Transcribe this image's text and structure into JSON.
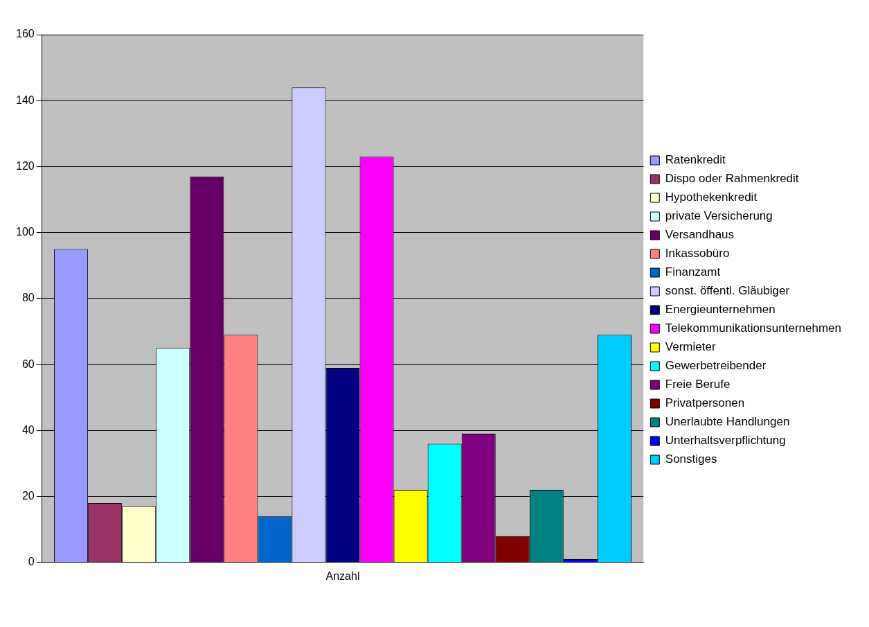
{
  "chart_data": {
    "type": "bar",
    "categories": [
      "Anzahl"
    ],
    "series": [
      {
        "name": "Ratenkredit",
        "color": "#9999ff",
        "values": [
          95
        ]
      },
      {
        "name": "Dispo oder Rahmenkredit",
        "color": "#993366",
        "values": [
          18
        ]
      },
      {
        "name": "Hypothekenkredit",
        "color": "#ffffcc",
        "values": [
          17
        ]
      },
      {
        "name": "private Versicherung",
        "color": "#ccffff",
        "values": [
          65
        ]
      },
      {
        "name": "Versandhaus",
        "color": "#660066",
        "values": [
          117
        ]
      },
      {
        "name": "Inkassobüro",
        "color": "#ff8080",
        "values": [
          69
        ]
      },
      {
        "name": "Finanzamt",
        "color": "#0066cc",
        "values": [
          14
        ]
      },
      {
        "name": "sonst. öffentl. Gläubiger",
        "color": "#ccccff",
        "values": [
          144
        ]
      },
      {
        "name": "Energieunternehmen",
        "color": "#000080",
        "values": [
          59
        ]
      },
      {
        "name": "Telekommunikationsunternehmen",
        "color": "#ff00ff",
        "values": [
          123
        ]
      },
      {
        "name": "Vermieter",
        "color": "#ffff00",
        "values": [
          22
        ]
      },
      {
        "name": "Gewerbetreibender",
        "color": "#00ffff",
        "values": [
          36
        ]
      },
      {
        "name": "Freie Berufe",
        "color": "#800080",
        "values": [
          39
        ]
      },
      {
        "name": "Privatpersonen",
        "color": "#800000",
        "values": [
          8
        ]
      },
      {
        "name": "Unerlaubte Handlungen",
        "color": "#008080",
        "values": [
          22
        ]
      },
      {
        "name": "Unterhaltsverpflichtung",
        "color": "#0000ff",
        "values": [
          1
        ]
      },
      {
        "name": "Sonstiges",
        "color": "#00ccff",
        "values": [
          69
        ]
      }
    ],
    "ylim": [
      0,
      160
    ],
    "yticks": [
      0,
      20,
      40,
      60,
      80,
      100,
      120,
      140,
      160
    ],
    "grid": "y",
    "legend": "right"
  }
}
